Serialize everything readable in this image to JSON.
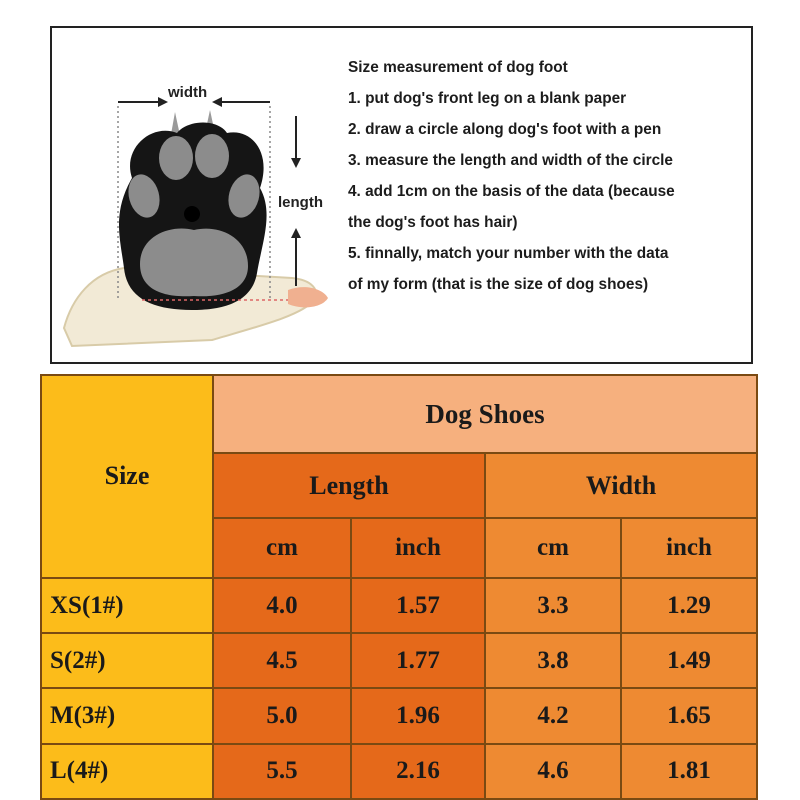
{
  "illustration": {
    "width_label": "width",
    "length_label": "length",
    "icon": "dog-paw-measurement-icon"
  },
  "instructions": {
    "title": "Size measurement of dog foot",
    "lines": [
      "1. put dog's front leg on a blank paper",
      "2. draw a circle along dog's foot with a pen",
      "3. measure the length and width of the circle",
      "4. add 1cm on the basis of the data (because",
      "the dog's foot has hair)",
      "5. finnally, match your number with the data",
      "of my form (that is the size of dog shoes)"
    ]
  },
  "table": {
    "size_header": "Size",
    "title": "Dog Shoes",
    "length_header": "Length",
    "width_header": "Width",
    "units": [
      "cm",
      "inch",
      "cm",
      "inch"
    ],
    "rows": [
      {
        "size": "XS(1#)",
        "length_cm": "4.0",
        "length_inch": "1.57",
        "width_cm": "3.3",
        "width_inch": "1.29"
      },
      {
        "size": "S(2#)",
        "length_cm": "4.5",
        "length_inch": "1.77",
        "width_cm": "3.8",
        "width_inch": "1.49"
      },
      {
        "size": "M(3#)",
        "length_cm": "5.0",
        "length_inch": "1.96",
        "width_cm": "4.2",
        "width_inch": "1.65"
      },
      {
        "size": "L(4#)",
        "length_cm": "5.5",
        "length_inch": "2.16",
        "width_cm": "4.6",
        "width_inch": "1.81"
      }
    ]
  },
  "colors": {
    "size_column": "#fcbc1a",
    "title_band": "#f6b07e",
    "length_columns": "#e5691a",
    "width_columns": "#ee8a32"
  }
}
